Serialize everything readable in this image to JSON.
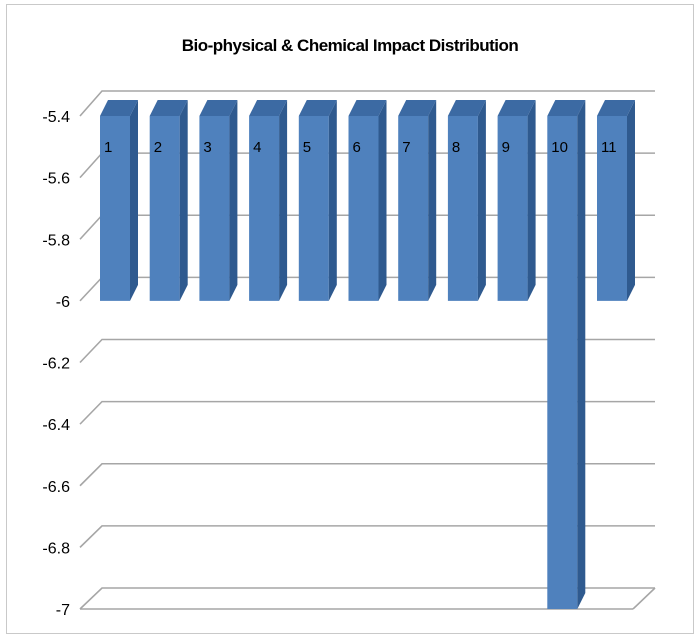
{
  "chart_data": {
    "type": "bar",
    "title": "Bio-physical & Chemical Impact Distribution",
    "xlabel": "",
    "ylabel": "",
    "categories": [
      "1",
      "2",
      "3",
      "4",
      "5",
      "6",
      "7",
      "8",
      "9",
      "10",
      "11"
    ],
    "series": [
      {
        "values": [
          -6,
          -6,
          -6,
          -6,
          -6,
          -6,
          -6,
          -6,
          -6,
          -7,
          -6
        ]
      }
    ],
    "ylim": [
      -7,
      -5.4
    ],
    "yticks": [
      "-5.4",
      "-5.6",
      "-5.8",
      "-6",
      "-6.2",
      "-6.4",
      "-6.6",
      "-6.8",
      "-7"
    ],
    "grid": true,
    "legend": "none",
    "bar_color": "#4f81bd",
    "bar_side_color": "#2f5a8f",
    "bar_top_color": "#3c6aa3",
    "grid_color": "#a6a6a6"
  }
}
